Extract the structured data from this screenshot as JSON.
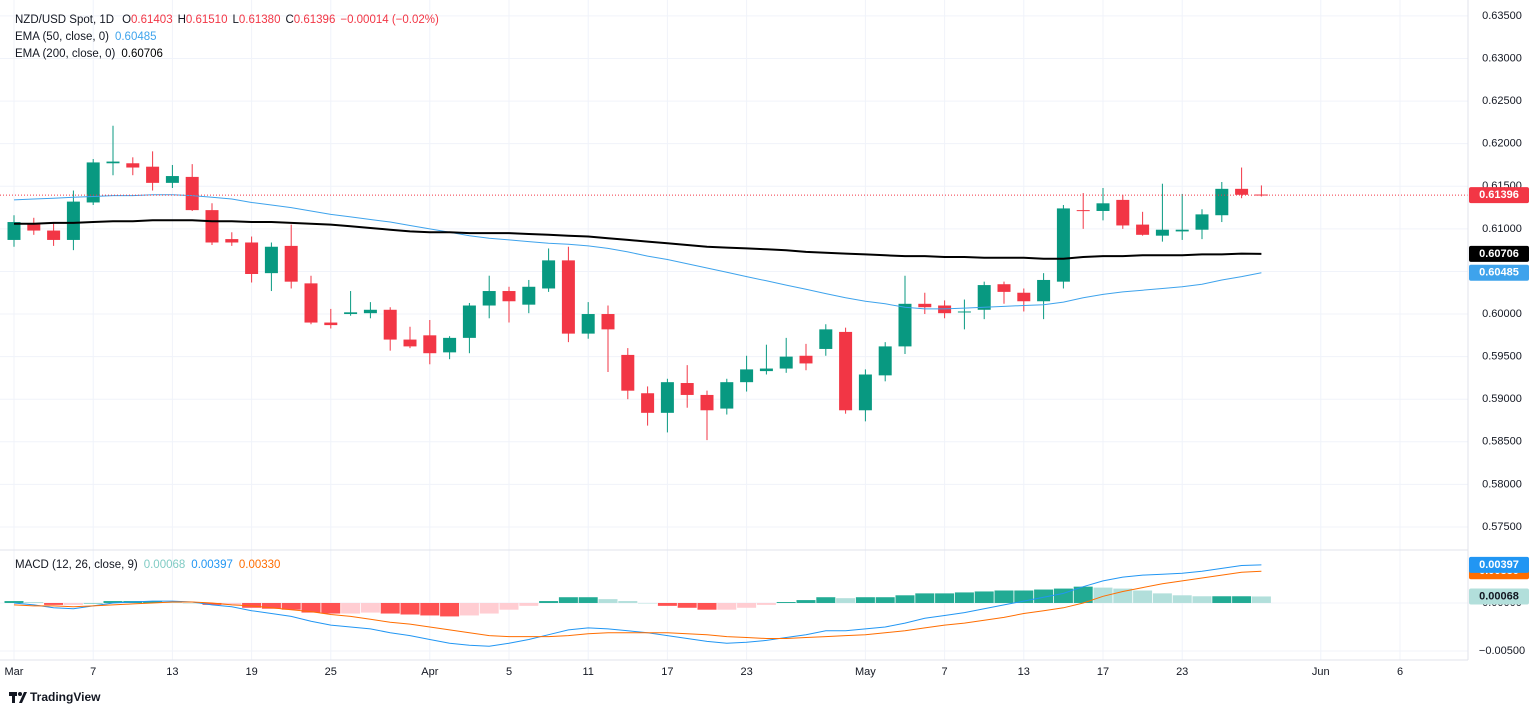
{
  "chart_data": {
    "type": "candlestick",
    "title": "NZD/USD Spot, 1D",
    "ohlc_names": [
      "O",
      "H",
      "L",
      "C"
    ],
    "last_bar_labels": [
      "0.61403",
      "0.61510",
      "0.61380",
      "0.61396"
    ],
    "change": "−0.00014 (−0.02%)",
    "up_color": "#089981",
    "down_color": "#f23645",
    "grid": true,
    "categories": [
      "Mar",
      null,
      null,
      null,
      "7",
      null,
      null,
      null,
      "13",
      null,
      null,
      null,
      "19",
      null,
      null,
      null,
      "25",
      null,
      null,
      null,
      null,
      "Apr",
      null,
      null,
      null,
      "5",
      null,
      null,
      null,
      "11",
      null,
      null,
      null,
      "17",
      null,
      null,
      null,
      "23",
      null,
      null,
      null,
      null,
      null,
      "May",
      null,
      null,
      null,
      "7",
      null,
      null,
      null,
      "13",
      null,
      null,
      null,
      "17",
      null,
      null,
      null,
      "23",
      null,
      null,
      null,
      null,
      null,
      null,
      "Jun",
      null,
      null,
      null,
      "6"
    ],
    "open": [
      0.6087,
      0.6106,
      0.6098,
      0.6087,
      0.6131,
      0.6177,
      0.6177,
      0.6173,
      0.6154,
      0.6161,
      0.6122,
      0.6088,
      0.6084,
      0.6048,
      0.608,
      0.6036,
      0.599,
      0.6,
      0.6001,
      0.6005,
      0.597,
      0.5975,
      0.5955,
      0.5972,
      0.601,
      0.6027,
      0.6011,
      0.603,
      0.6063,
      0.5977,
      0.6,
      0.5952,
      0.5907,
      0.5884,
      0.5919,
      0.5905,
      0.5889,
      0.592,
      0.5933,
      0.5936,
      0.5951,
      0.5959,
      0.5979,
      0.5887,
      0.5928,
      0.5962,
      0.6012,
      0.601,
      0.6002,
      0.6005,
      0.6035,
      0.6025,
      0.6015,
      0.6038,
      0.6122,
      0.6121,
      0.6134,
      0.6105,
      0.6092,
      0.6097,
      0.6099,
      0.6116,
      0.6147,
      0.61403,
      null,
      null,
      null,
      null,
      null,
      null,
      null
    ],
    "high": [
      0.6116,
      0.6113,
      0.6108,
      0.6145,
      0.6182,
      0.6221,
      0.6184,
      0.6191,
      0.6175,
      0.6176,
      0.613,
      0.6096,
      0.6091,
      0.6084,
      0.6105,
      0.6045,
      0.6006,
      0.6027,
      0.6014,
      0.6008,
      0.5985,
      0.5993,
      0.5974,
      0.6013,
      0.6045,
      0.6032,
      0.604,
      0.6077,
      0.6079,
      0.6014,
      0.601,
      0.596,
      0.5915,
      0.5924,
      0.594,
      0.591,
      0.5924,
      0.5951,
      0.5964,
      0.5972,
      0.5965,
      0.5988,
      0.5984,
      0.5935,
      0.5967,
      0.6045,
      0.6025,
      0.6016,
      0.6017,
      0.6038,
      0.6038,
      0.603,
      0.6048,
      0.6128,
      0.6142,
      0.6148,
      0.614,
      0.612,
      0.6153,
      0.6141,
      0.6123,
      0.6155,
      0.6172,
      0.6151,
      null,
      null,
      null,
      null,
      null,
      null,
      null
    ],
    "low": [
      0.6079,
      0.6093,
      0.608,
      0.6075,
      0.6128,
      0.6163,
      0.6163,
      0.6145,
      0.6148,
      0.6121,
      0.6081,
      0.608,
      0.6037,
      0.6027,
      0.603,
      0.5988,
      0.5983,
      0.5998,
      0.5995,
      0.5957,
      0.596,
      0.5941,
      0.5947,
      0.5954,
      0.5995,
      0.599,
      0.6001,
      0.6026,
      0.5967,
      0.5971,
      0.5932,
      0.59,
      0.5869,
      0.5861,
      0.589,
      0.5852,
      0.5882,
      0.5909,
      0.5929,
      0.5931,
      0.5934,
      0.5951,
      0.5883,
      0.5874,
      0.5921,
      0.5953,
      0.6,
      0.5995,
      0.5982,
      0.5994,
      0.6012,
      0.6003,
      0.5994,
      0.603,
      0.61,
      0.611,
      0.61,
      0.6092,
      0.6085,
      0.6087,
      0.6088,
      0.6108,
      0.6136,
      0.6138,
      null,
      null,
      null,
      null,
      null,
      null,
      null
    ],
    "close": [
      0.6108,
      0.6098,
      0.6087,
      0.6132,
      0.6178,
      0.6179,
      0.6172,
      0.6154,
      0.6162,
      0.6122,
      0.6084,
      0.6084,
      0.6047,
      0.6079,
      0.6038,
      0.599,
      0.5987,
      0.6002,
      0.6005,
      0.597,
      0.5962,
      0.5954,
      0.5972,
      0.601,
      0.6027,
      0.6015,
      0.6032,
      0.6063,
      0.5977,
      0.6,
      0.5982,
      0.591,
      0.5884,
      0.592,
      0.5905,
      0.5887,
      0.592,
      0.5935,
      0.5936,
      0.595,
      0.5942,
      0.5982,
      0.5887,
      0.5929,
      0.5962,
      0.6012,
      0.6008,
      0.6001,
      0.6003,
      0.6034,
      0.6026,
      0.6015,
      0.604,
      0.6124,
      0.6121,
      0.613,
      0.6104,
      0.6093,
      0.6099,
      0.6099,
      0.6117,
      0.6147,
      0.614,
      0.61396,
      null,
      null,
      null,
      null,
      null,
      null,
      null
    ],
    "ylim": [
      0.57253,
      0.63687
    ],
    "yticks": [
      {
        "value": 0.575,
        "label": "0.57500"
      },
      {
        "value": 0.58,
        "label": "0.58000"
      },
      {
        "value": 0.585,
        "label": "0.58500"
      },
      {
        "value": 0.59,
        "label": "0.59000"
      },
      {
        "value": 0.595,
        "label": "0.59500"
      },
      {
        "value": 0.6,
        "label": "0.60000"
      },
      {
        "value": 0.605,
        "label": "0.60500"
      },
      {
        "value": 0.61,
        "label": "0.61000"
      },
      {
        "value": 0.615,
        "label": "0.61500"
      },
      {
        "value": 0.62,
        "label": "0.62000"
      },
      {
        "value": 0.625,
        "label": "0.62500"
      },
      {
        "value": 0.63,
        "label": "0.63000"
      },
      {
        "value": 0.635,
        "label": "0.63500"
      }
    ],
    "overlays": [
      {
        "name": "EMA (50, close, 0)",
        "color": "#3ea3ec",
        "values": [
          0.6134,
          0.6135,
          0.6136,
          0.6137,
          0.6138,
          0.6139,
          0.6139,
          0.614,
          0.614,
          0.6139,
          0.6137,
          0.6135,
          0.6131,
          0.6128,
          0.6125,
          0.6121,
          0.6117,
          0.6114,
          0.6111,
          0.6108,
          0.6104,
          0.61,
          0.6096,
          0.6092,
          0.6089,
          0.6087,
          0.6085,
          0.6083,
          0.6082,
          0.608,
          0.6077,
          0.6073,
          0.6068,
          0.6064,
          0.6059,
          0.6054,
          0.6049,
          0.6044,
          0.6039,
          0.6034,
          0.6029,
          0.6024,
          0.6019,
          0.6015,
          0.6012,
          0.6008,
          0.6006,
          0.6006,
          0.6007,
          0.6008,
          0.6009,
          0.601,
          0.6011,
          0.6014,
          0.6019,
          0.6023,
          0.6026,
          0.6028,
          0.603,
          0.6032,
          0.6035,
          0.604,
          0.6044,
          0.60485,
          null,
          null,
          null,
          null,
          null,
          null,
          null
        ]
      },
      {
        "name": "EMA (200, close, 0)",
        "color": "#000000",
        "values": [
          0.6106,
          0.6106,
          0.6107,
          0.6107,
          0.6108,
          0.6109,
          0.6109,
          0.611,
          0.611,
          0.611,
          0.6109,
          0.6109,
          0.6108,
          0.6108,
          0.6107,
          0.6106,
          0.6105,
          0.6103,
          0.6101,
          0.6099,
          0.6097,
          0.6096,
          0.6096,
          0.6095,
          0.6095,
          0.6095,
          0.6094,
          0.6093,
          0.6092,
          0.6091,
          0.6089,
          0.6087,
          0.6085,
          0.6083,
          0.6081,
          0.6079,
          0.6078,
          0.6077,
          0.6076,
          0.6075,
          0.6073,
          0.6072,
          0.6071,
          0.607,
          0.6069,
          0.6068,
          0.6068,
          0.6067,
          0.6067,
          0.6066,
          0.6066,
          0.6066,
          0.6065,
          0.6065,
          0.6067,
          0.6068,
          0.6068,
          0.6069,
          0.6069,
          0.6069,
          0.607,
          0.607,
          0.6071,
          0.60706,
          null,
          null,
          null,
          null,
          null,
          null,
          null
        ]
      }
    ],
    "macd": {
      "name": "MACD (12, 26, close, 9)",
      "ylim": [
        -0.00594,
        0.00531
      ],
      "yticks": [
        {
          "value": 0,
          "label": "0.00000"
        },
        {
          "value": -0.005,
          "label": "−0.00500"
        }
      ],
      "histogram": {
        "pos_up": "#22ab94",
        "pos_down": "#b2dfdb",
        "neg_down": "#ff5252",
        "neg_up": "#ffcdd2",
        "last_label": "0.00068",
        "values": [
          0.0002,
          0.0001,
          -0.0002,
          -0.0002,
          0,
          0.0002,
          0.0002,
          0.0002,
          0.0001,
          0,
          -0.0002,
          -0.0002,
          -0.0005,
          -0.0006,
          -0.0007,
          -0.001,
          -0.0011,
          -0.0011,
          -0.001,
          -0.0011,
          -0.0012,
          -0.0013,
          -0.0014,
          -0.0013,
          -0.0011,
          -0.0007,
          -0.0003,
          0.0002,
          0.0006,
          0.0006,
          0.0004,
          0.0002,
          0,
          -0.0003,
          -0.0005,
          -0.0007,
          -0.0007,
          -0.0005,
          -0.0002,
          0.0001,
          0.0003,
          0.0006,
          0.0005,
          0.0006,
          0.0006,
          0.0008,
          0.001,
          0.001,
          0.0011,
          0.0012,
          0.0013,
          0.0013,
          0.0014,
          0.0015,
          0.0017,
          0.0016,
          0.0015,
          0.0013,
          0.001,
          0.0008,
          0.0007,
          0.0007,
          0.0007,
          0.00068,
          null,
          null,
          null,
          null,
          null,
          null,
          null
        ]
      },
      "macd_line": {
        "color": "#2196f3",
        "last_label": "0.00397",
        "values": [
          0,
          -0.0002,
          -0.0005,
          -0.0006,
          -0.0003,
          0,
          0.0001,
          0.0002,
          0.0002,
          0.0001,
          -0.0002,
          -0.0004,
          -0.0008,
          -0.0011,
          -0.0014,
          -0.0019,
          -0.0023,
          -0.0025,
          -0.0027,
          -0.0031,
          -0.0034,
          -0.0038,
          -0.0042,
          -0.0044,
          -0.0045,
          -0.0042,
          -0.0038,
          -0.0033,
          -0.0028,
          -0.0026,
          -0.0027,
          -0.0029,
          -0.0031,
          -0.0034,
          -0.0037,
          -0.004,
          -0.0042,
          -0.0041,
          -0.0039,
          -0.0036,
          -0.0033,
          -0.0029,
          -0.0029,
          -0.0027,
          -0.0025,
          -0.0021,
          -0.0016,
          -0.0013,
          -0.001,
          -0.0006,
          -0.0002,
          0.0002,
          0.0006,
          0.001,
          0.0017,
          0.0023,
          0.0027,
          0.0029,
          0.003,
          0.0031,
          0.0033,
          0.0036,
          0.0039,
          0.00397,
          null,
          null,
          null,
          null,
          null,
          null,
          null
        ]
      },
      "signal": {
        "color": "#ff6d00",
        "last_label": "0.00330",
        "values": [
          -0.0002,
          -0.0003,
          -0.0003,
          -0.0004,
          -0.0003,
          -0.0002,
          -0.0001,
          0,
          0.0001,
          0.0001,
          0,
          -0.0002,
          -0.0003,
          -0.0005,
          -0.0007,
          -0.0009,
          -0.0012,
          -0.0014,
          -0.0017,
          -0.002,
          -0.0022,
          -0.0025,
          -0.0028,
          -0.0031,
          -0.0034,
          -0.0035,
          -0.0035,
          -0.0035,
          -0.0034,
          -0.0032,
          -0.0031,
          -0.0031,
          -0.0031,
          -0.0031,
          -0.0032,
          -0.0033,
          -0.0035,
          -0.0036,
          -0.0037,
          -0.0037,
          -0.0036,
          -0.0035,
          -0.0034,
          -0.0033,
          -0.0031,
          -0.0029,
          -0.0026,
          -0.0023,
          -0.0021,
          -0.0018,
          -0.0015,
          -0.0011,
          -0.0008,
          -0.0005,
          0,
          0.0007,
          0.0012,
          0.0016,
          0.002,
          0.0023,
          0.0026,
          0.0029,
          0.0032,
          0.0033,
          null,
          null,
          null,
          null,
          null,
          null,
          null
        ]
      }
    },
    "watermark": "TradingView"
  }
}
